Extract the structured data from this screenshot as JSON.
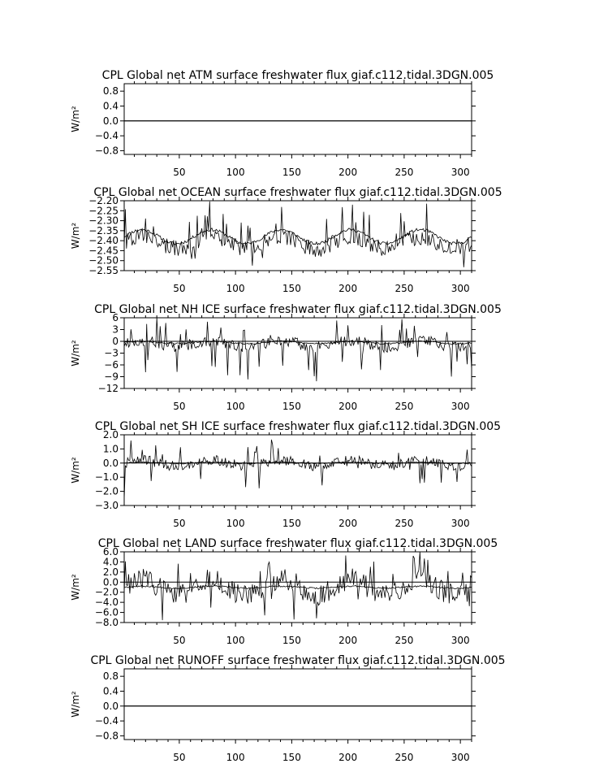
{
  "chart_data": [
    {
      "type": "line",
      "title": "CPL Global net ATM surface freshwater flux giaf.c112.tidal.3DGN.005",
      "ylabel": "W/m²",
      "xlim": [
        1,
        310
      ],
      "ylim": [
        -0.9,
        1.0
      ],
      "x_ticks": [
        50,
        100,
        150,
        200,
        250,
        300
      ],
      "y_ticks": [
        0.8,
        0.4,
        0.0,
        -0.4,
        -0.8
      ],
      "y_tick_labels": [
        "0.8",
        "0.4",
        "0.0",
        "−0.4",
        "−0.8"
      ],
      "zero_line": true,
      "grid": false,
      "series": [
        {
          "kind": "flat",
          "values": [
            0.0
          ]
        }
      ]
    },
    {
      "type": "line",
      "title": "CPL Global net OCEAN surface freshwater flux giaf.c112.tidal.3DGN.005",
      "ylabel": "W/m²",
      "xlim": [
        1,
        310
      ],
      "ylim": [
        -2.55,
        -2.2
      ],
      "x_ticks": [
        50,
        100,
        150,
        200,
        250,
        300
      ],
      "y_ticks": [
        -2.2,
        -2.25,
        -2.3,
        -2.35,
        -2.4,
        -2.45,
        -2.5,
        -2.55
      ],
      "y_tick_labels": [
        "−2.20",
        "−2.25",
        "−2.30",
        "−2.35",
        "−2.40",
        "−2.45",
        "−2.50",
        "−2.55"
      ],
      "zero_line": false,
      "grid": false,
      "series": [
        {
          "kind": "monthly",
          "base": -2.41,
          "amp_periodic": 0.03,
          "noise": 0.04,
          "spike_up": 0.14,
          "spike_down": 0.07,
          "seed": 7
        },
        {
          "kind": "annual-mean",
          "base": -2.38,
          "amp_periodic": 0.035,
          "noise": 0.008,
          "seed": 11
        }
      ]
    },
    {
      "type": "line",
      "title": "CPL Global net NH ICE surface freshwater flux giaf.c112.tidal.3DGN.005",
      "ylabel": "W/m²",
      "xlim": [
        1,
        310
      ],
      "ylim": [
        -12,
        6
      ],
      "x_ticks": [
        50,
        100,
        150,
        200,
        250,
        300
      ],
      "y_ticks": [
        6,
        3,
        0,
        -3,
        -6,
        -9,
        -12
      ],
      "y_tick_labels": [
        "6",
        "3",
        "0",
        "−3",
        "−6",
        "−9",
        "−12"
      ],
      "zero_line": true,
      "grid": false,
      "series": [
        {
          "kind": "monthly",
          "base": -0.6,
          "amp_periodic": 0.8,
          "noise": 1.4,
          "spike_up": 5.5,
          "spike_down": 8.0,
          "seed": 23
        },
        {
          "kind": "annual-mean",
          "base": -0.3,
          "amp_periodic": 0.3,
          "noise": 0.2,
          "seed": 29
        }
      ]
    },
    {
      "type": "line",
      "title": "CPL Global net SH ICE surface freshwater flux giaf.c112.tidal.3DGN.005",
      "ylabel": "W/m²",
      "xlim": [
        1,
        310
      ],
      "ylim": [
        -3.0,
        2.0
      ],
      "x_ticks": [
        50,
        100,
        150,
        200,
        250,
        300
      ],
      "y_ticks": [
        2.0,
        1.0,
        0.0,
        -1.0,
        -2.0,
        -3.0
      ],
      "y_tick_labels": [
        "2.0",
        "1.0",
        "0.0",
        "−1.0",
        "−2.0",
        "−3.0"
      ],
      "zero_line": true,
      "grid": false,
      "series": [
        {
          "kind": "monthly",
          "base": 0.0,
          "amp_periodic": 0.2,
          "noise": 0.35,
          "spike_up": 1.5,
          "spike_down": 1.9,
          "seed": 41,
          "start_dip": -2.6
        },
        {
          "kind": "annual-mean",
          "base": 0.02,
          "amp_periodic": 0.05,
          "noise": 0.04,
          "seed": 43
        }
      ]
    },
    {
      "type": "line",
      "title": "CPL Global net LAND surface freshwater flux giaf.c112.tidal.3DGN.005",
      "ylabel": "W/m²",
      "xlim": [
        1,
        310
      ],
      "ylim": [
        -8.0,
        6.0
      ],
      "x_ticks": [
        50,
        100,
        150,
        200,
        250,
        300
      ],
      "y_ticks": [
        6.0,
        4.0,
        2.0,
        0.0,
        -2.0,
        -4.0,
        -6.0,
        -8.0
      ],
      "y_tick_labels": [
        "6.0",
        "4.0",
        "2.0",
        "0.0",
        "−2.0",
        "−4.0",
        "−6.0",
        "−8.0"
      ],
      "zero_line": true,
      "grid": false,
      "series": [
        {
          "kind": "monthly",
          "base": -1.0,
          "amp_periodic": 1.5,
          "noise": 2.2,
          "spike_up": 5.0,
          "spike_down": 6.5,
          "seed": 61
        },
        {
          "kind": "annual-mean",
          "base": -1.0,
          "amp_periodic": 0.2,
          "noise": 0.15,
          "seed": 67
        }
      ]
    },
    {
      "type": "line",
      "title": "CPL Global net RUNOFF surface freshwater flux giaf.c112.tidal.3DGN.005",
      "ylabel": "W/m²",
      "xlim": [
        1,
        310
      ],
      "ylim": [
        -0.9,
        1.0
      ],
      "x_ticks": [
        50,
        100,
        150,
        200,
        250,
        300
      ],
      "y_ticks": [
        0.8,
        0.4,
        0.0,
        -0.4,
        -0.8
      ],
      "y_tick_labels": [
        "0.8",
        "0.4",
        "0.0",
        "−0.4",
        "−0.8"
      ],
      "zero_line": true,
      "grid": false,
      "series": [
        {
          "kind": "flat",
          "values": [
            0.0
          ]
        }
      ]
    }
  ]
}
